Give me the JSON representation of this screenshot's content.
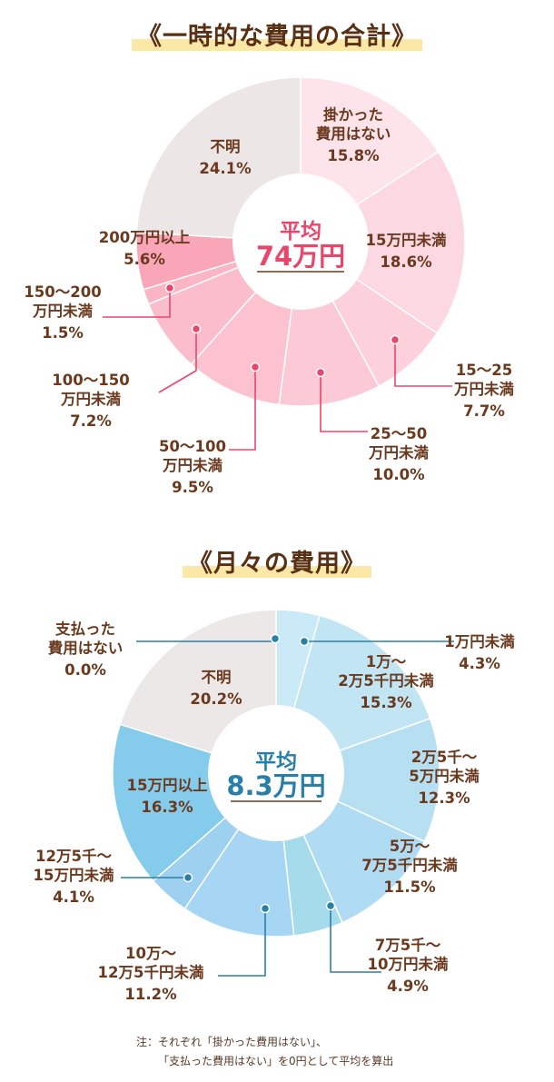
{
  "chart_data": [
    {
      "type": "pie",
      "title": "《一時的な費用の合計》",
      "center_label": "平均",
      "center_value": "74万円",
      "slices": [
        {
          "label": [
            "掛かった",
            "費用はない"
          ],
          "value": 15.8,
          "value_text": "15.8%",
          "color": "#fde3ea"
        },
        {
          "label": [
            "15万円未満"
          ],
          "value": 18.6,
          "value_text": "18.6%",
          "color": "#fcd8e2"
        },
        {
          "label": [
            "15〜25",
            "万円未満"
          ],
          "value": 7.7,
          "value_text": "7.7%",
          "color": "#fdd1dc"
        },
        {
          "label": [
            "25〜50",
            "万円未満"
          ],
          "value": 10.0,
          "value_text": "10.0%",
          "color": "#fccad6"
        },
        {
          "label": [
            "50〜100",
            "万円未満"
          ],
          "value": 9.5,
          "value_text": "9.5%",
          "color": "#fcc2d0"
        },
        {
          "label": [
            "100〜150",
            "万円未満"
          ],
          "value": 7.2,
          "value_text": "7.2%",
          "color": "#fbbccb"
        },
        {
          "label": [
            "150〜200",
            "万円未満"
          ],
          "value": 1.5,
          "value_text": "1.5%",
          "color": "#fbb5c5"
        },
        {
          "label": [
            "200万円以上"
          ],
          "value": 5.6,
          "value_text": "5.6%",
          "color": "#f9a6b9"
        },
        {
          "label": [
            "不明"
          ],
          "value": 24.1,
          "value_text": "24.1%",
          "color": "#ede6e6"
        }
      ]
    },
    {
      "type": "pie",
      "title": "《月々の費用》",
      "center_label": "平均",
      "center_value": "8.3万円",
      "slices": [
        {
          "label": [
            "支払った",
            "費用はない"
          ],
          "value": 0.0,
          "value_text": "0.0%",
          "color": "#d6eef8"
        },
        {
          "label": [
            "1万円未満"
          ],
          "value": 4.3,
          "value_text": "4.3%",
          "color": "#c9eaf6"
        },
        {
          "label": [
            "1万〜",
            "2万5千円未満"
          ],
          "value": 15.3,
          "value_text": "15.3%",
          "color": "#c2e5f3"
        },
        {
          "label": [
            "2万5千〜",
            "5万円未満"
          ],
          "value": 12.3,
          "value_text": "12.3%",
          "color": "#b6e0f2"
        },
        {
          "label": [
            "5万〜",
            "7万5千円未満"
          ],
          "value": 11.5,
          "value_text": "11.5%",
          "color": "#b0dcf3"
        },
        {
          "label": [
            "7万5千〜",
            "10万円未満"
          ],
          "value": 4.9,
          "value_text": "4.9%",
          "color": "#a6dbec"
        },
        {
          "label": [
            "10万〜",
            "12万5千円未満"
          ],
          "value": 11.2,
          "value_text": "11.2%",
          "color": "#a6d6f4"
        },
        {
          "label": [
            "12万5千〜",
            "15万円未満"
          ],
          "value": 4.1,
          "value_text": "4.1%",
          "color": "#9ed0ef"
        },
        {
          "label": [
            "15万円以上"
          ],
          "value": 16.3,
          "value_text": "16.3%",
          "color": "#85ccec"
        },
        {
          "label": [
            "不明"
          ],
          "value": 20.2,
          "value_text": "20.2%",
          "color": "#ede8e8"
        }
      ]
    }
  ],
  "note": {
    "line1": "注：それぞれ「掛かった費用はない」、",
    "line2": "「支払った費用はない」を0円として平均を算出"
  },
  "colors": {
    "callout_pink": "#e8476b",
    "callout_blue": "#2a7fa8",
    "title_highlight": "#fbe7a6"
  }
}
